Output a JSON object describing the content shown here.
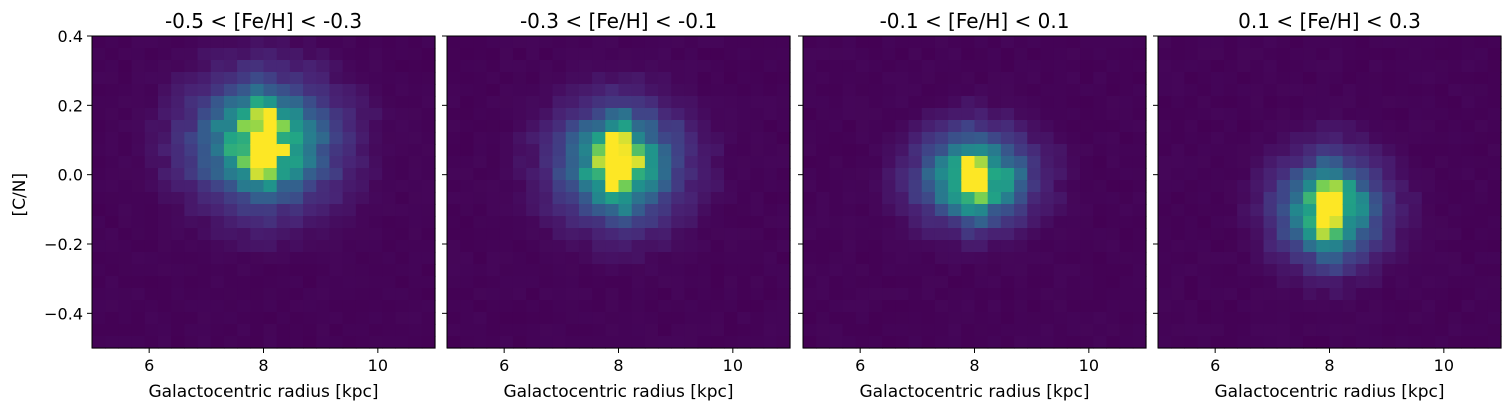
{
  "chart_data": [
    {
      "type": "heatmap",
      "title": "-0.5 < [Fe/H] < -0.3",
      "xlabel": "Galactocentric radius [kpc]",
      "ylabel": "[C/N]",
      "xlim": [
        5,
        11
      ],
      "ylim": [
        -0.5,
        0.4
      ],
      "xticks": [
        "6",
        "8",
        "10"
      ],
      "yticks": [
        "0.4",
        "0.2",
        "0.0",
        "−0.2",
        "−0.4"
      ],
      "colormap": "viridis",
      "peak": {
        "x": 8.0,
        "y": 0.09
      },
      "spread_kpc": 0.75,
      "spread_dex": 0.11
    },
    {
      "type": "heatmap",
      "title": "-0.3 < [Fe/H] < -0.1",
      "xlabel": "Galactocentric radius [kpc]",
      "ylabel": "",
      "xlim": [
        5,
        11
      ],
      "ylim": [
        -0.5,
        0.4
      ],
      "xticks": [
        "6",
        "8",
        "10"
      ],
      "yticks": [],
      "colormap": "viridis",
      "peak": {
        "x": 8.0,
        "y": 0.03
      },
      "spread_kpc": 0.65,
      "spread_dex": 0.1
    },
    {
      "type": "heatmap",
      "title": "-0.1 < [Fe/H] < 0.1",
      "xlabel": "Galactocentric radius [kpc]",
      "ylabel": "",
      "xlim": [
        5,
        11
      ],
      "ylim": [
        -0.5,
        0.4
      ],
      "xticks": [
        "6",
        "8",
        "10"
      ],
      "yticks": [],
      "colormap": "viridis",
      "peak": {
        "x": 8.0,
        "y": -0.01
      },
      "spread_kpc": 0.6,
      "spread_dex": 0.08
    },
    {
      "type": "heatmap",
      "title": "0.1 < [Fe/H] < 0.3",
      "xlabel": "Galactocentric radius [kpc]",
      "ylabel": "",
      "xlim": [
        5,
        11
      ],
      "ylim": [
        -0.5,
        0.4
      ],
      "xticks": [
        "6",
        "8",
        "10"
      ],
      "yticks": [],
      "colormap": "viridis",
      "peak": {
        "x": 8.0,
        "y": -0.1
      },
      "spread_kpc": 0.55,
      "spread_dex": 0.09
    }
  ]
}
